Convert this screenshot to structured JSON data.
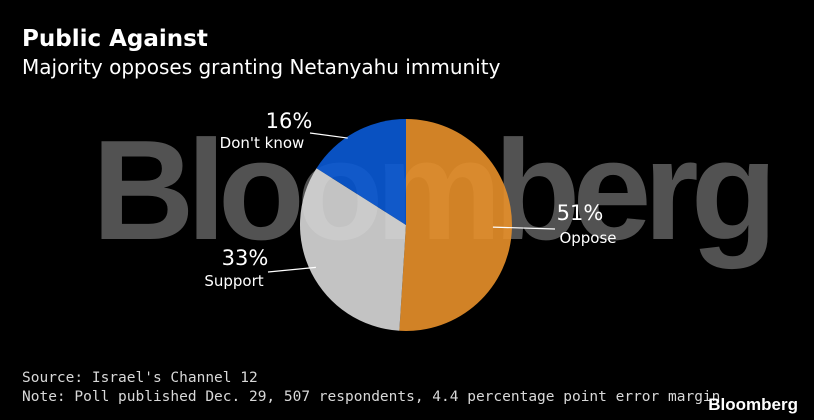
{
  "header": {
    "title": "Public Against",
    "subtitle": "Majority opposes granting Netanyahu immunity"
  },
  "watermark_text": "Bloomberg",
  "chart_data": {
    "type": "pie",
    "title": "Public Against",
    "subtitle": "Majority opposes granting Netanyahu immunity",
    "slices": [
      {
        "label": "Oppose",
        "value": 51,
        "display": "51%",
        "color": "#e8902a"
      },
      {
        "label": "Support",
        "value": 33,
        "display": "33%",
        "color": "#d8d8d8"
      },
      {
        "label": "Don't know",
        "value": 16,
        "display": "16%",
        "color": "#0a5ad6"
      }
    ],
    "start": "12 o'clock",
    "direction": "clockwise"
  },
  "footer": {
    "source": "Source: Israel's Channel 12",
    "note": "Note: Poll published Dec. 29, 507 respondents, 4.4 percentage point error margin",
    "brand": "Bloomberg"
  }
}
